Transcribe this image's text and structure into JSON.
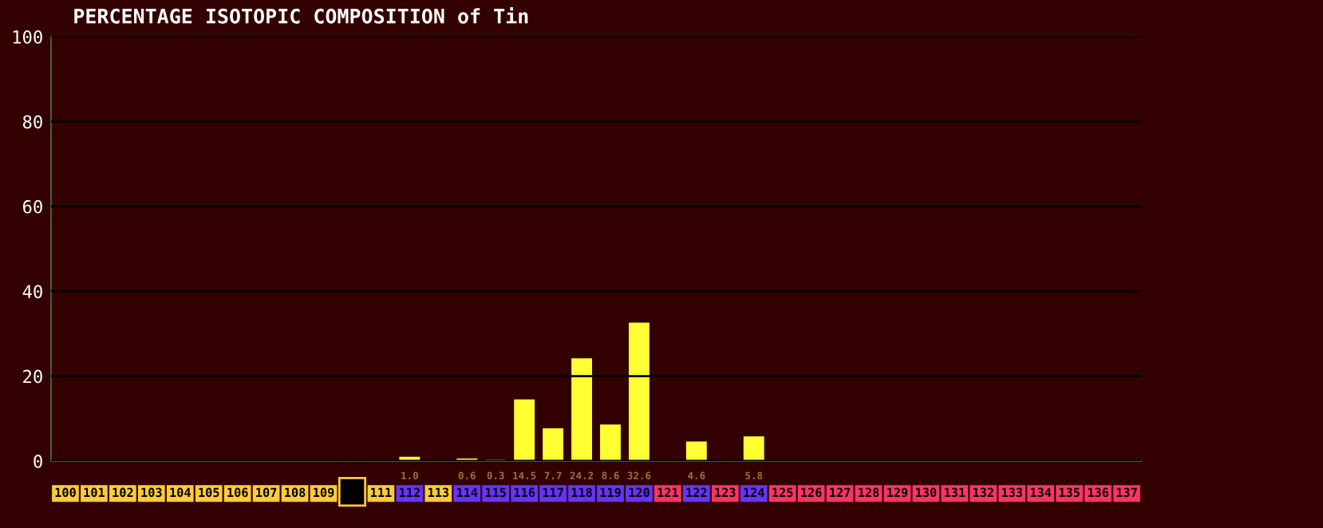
{
  "chart_data": {
    "type": "bar",
    "title": "PERCENTAGE ISOTOPIC COMPOSITION of Tin",
    "categories": [
      "100",
      "101",
      "102",
      "103",
      "104",
      "105",
      "106",
      "107",
      "108",
      "109",
      null,
      "111",
      "112",
      "113",
      "114",
      "115",
      "116",
      "117",
      "118",
      "119",
      "120",
      "121",
      "122",
      "123",
      "124",
      "125",
      "126",
      "127",
      "128",
      "129",
      "130",
      "131",
      "132",
      "133",
      "134",
      "135",
      "136",
      "137"
    ],
    "values": [
      null,
      null,
      null,
      null,
      null,
      null,
      null,
      null,
      null,
      null,
      null,
      null,
      1.0,
      null,
      0.6,
      0.3,
      14.5,
      7.7,
      24.2,
      8.6,
      32.6,
      null,
      4.6,
      null,
      5.8,
      null,
      null,
      null,
      null,
      null,
      null,
      null,
      null,
      null,
      null,
      null,
      null,
      null
    ],
    "value_labels": [
      null,
      null,
      null,
      null,
      null,
      null,
      null,
      null,
      null,
      null,
      null,
      null,
      "1.0",
      null,
      "0.6",
      "0.3",
      "14.5",
      "7.7",
      "24.2",
      "8.6",
      "32.6",
      null,
      "4.6",
      null,
      "5.8",
      null,
      null,
      null,
      null,
      null,
      null,
      null,
      null,
      null,
      null,
      null,
      null,
      null
    ],
    "color": "#ffff33",
    "ylim": [
      0,
      100
    ],
    "yticks": [
      0,
      20,
      40,
      60,
      80,
      100
    ],
    "grid": "y"
  }
}
